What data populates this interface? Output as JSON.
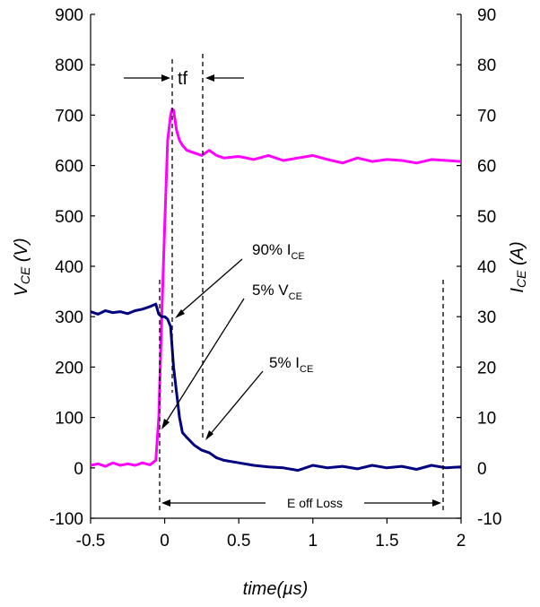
{
  "chart_data": {
    "type": "line",
    "xlabel": "time(µs)",
    "ylabel_left": {
      "main": "V",
      "sub": "CE",
      "unit": " (V)"
    },
    "ylabel_right": {
      "main": "I",
      "sub": "CE",
      "unit": " (A)"
    },
    "xlim": [
      -0.5,
      2
    ],
    "ylim_left": [
      -100,
      900
    ],
    "ylim_right": [
      -10,
      90
    ],
    "x_ticks": [
      -0.5,
      0,
      0.5,
      1,
      1.5,
      2
    ],
    "x_tick_labels": [
      "-0.5",
      "0",
      "0.5",
      "1",
      "1.5",
      "2"
    ],
    "y_left_ticks": [
      -100,
      0,
      100,
      200,
      300,
      400,
      500,
      600,
      700,
      800,
      900
    ],
    "y_left_tick_labels": [
      "-100",
      "0",
      "100",
      "200",
      "300",
      "400",
      "500",
      "600",
      "700",
      "800",
      "900"
    ],
    "y_right_ticks": [
      -10,
      0,
      10,
      20,
      30,
      40,
      50,
      60,
      70,
      80,
      90
    ],
    "y_right_tick_labels": [
      "-10",
      "0",
      "10",
      "20",
      "30",
      "40",
      "50",
      "60",
      "70",
      "80",
      "90"
    ],
    "grid": false,
    "series": [
      {
        "axis": "left",
        "color": "#ff00ff",
        "x": [
          -0.5,
          -0.45,
          -0.4,
          -0.35,
          -0.3,
          -0.25,
          -0.2,
          -0.15,
          -0.1,
          -0.06,
          -0.04,
          -0.02,
          0.0,
          0.02,
          0.04,
          0.05,
          0.06,
          0.07,
          0.08,
          0.1,
          0.12,
          0.15,
          0.2,
          0.25,
          0.3,
          0.35,
          0.4,
          0.5,
          0.6,
          0.7,
          0.8,
          0.9,
          1.0,
          1.1,
          1.2,
          1.3,
          1.4,
          1.5,
          1.6,
          1.7,
          1.8,
          1.9,
          2.0
        ],
        "y": [
          5,
          8,
          3,
          10,
          5,
          8,
          5,
          10,
          6,
          15,
          100,
          300,
          480,
          650,
          700,
          712,
          710,
          690,
          670,
          650,
          640,
          630,
          625,
          620,
          630,
          620,
          615,
          618,
          612,
          620,
          610,
          615,
          620,
          612,
          605,
          615,
          608,
          612,
          610,
          605,
          612,
          610,
          608
        ]
      },
      {
        "axis": "left",
        "color": "#000080",
        "x": [
          -0.5,
          -0.45,
          -0.4,
          -0.35,
          -0.3,
          -0.25,
          -0.2,
          -0.15,
          -0.1,
          -0.06,
          -0.04,
          -0.02,
          0.0,
          0.02,
          0.04,
          0.06,
          0.08,
          0.1,
          0.12,
          0.15,
          0.2,
          0.25,
          0.3,
          0.35,
          0.4,
          0.5,
          0.6,
          0.7,
          0.8,
          0.9,
          1.0,
          1.1,
          1.2,
          1.3,
          1.4,
          1.5,
          1.6,
          1.7,
          1.8,
          1.9,
          2.0
        ],
        "y": [
          310,
          305,
          312,
          308,
          310,
          306,
          312,
          315,
          320,
          325,
          305,
          300,
          300,
          295,
          280,
          200,
          150,
          100,
          70,
          60,
          45,
          35,
          30,
          20,
          15,
          10,
          5,
          2,
          0,
          -5,
          5,
          0,
          3,
          -2,
          5,
          0,
          3,
          -3,
          5,
          0,
          2
        ]
      }
    ],
    "annotations": {
      "tf": "tf",
      "ninety_ice": {
        "main": "90% I",
        "sub": "CE"
      },
      "five_vce": {
        "main": "5% V",
        "sub": "CE"
      },
      "five_ice": {
        "main": "5% I",
        "sub": "CE"
      },
      "eoff": "E off Loss"
    }
  }
}
